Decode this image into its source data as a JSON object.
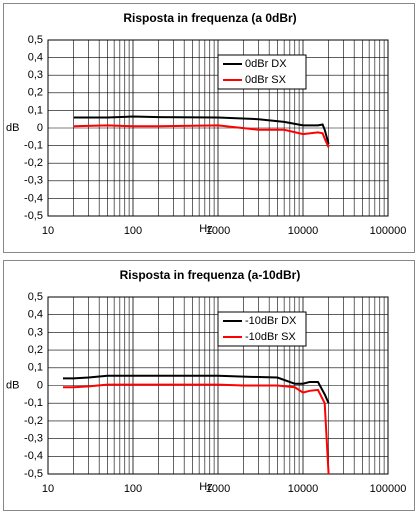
{
  "chart_data": [
    {
      "type": "line",
      "title": "Risposta in frequenza (a 0dBr)",
      "xlabel": "Hz",
      "ylabel": "dB",
      "xscale": "log",
      "grid": true,
      "legend": "upper right",
      "x": [
        20,
        50,
        100,
        200,
        1000,
        3000,
        6000,
        10000,
        15000,
        17000,
        18000,
        20000
      ],
      "series": [
        {
          "name": "0dBr DX",
          "color": "#000000",
          "values": [
            0.06,
            0.06,
            0.065,
            0.062,
            0.06,
            0.05,
            0.035,
            0.015,
            0.015,
            0.02,
            -0.01,
            -0.09
          ]
        },
        {
          "name": "0dBr SX",
          "color": "#ff0000",
          "values": [
            0.01,
            0.015,
            0.01,
            0.01,
            0.015,
            -0.01,
            -0.01,
            -0.035,
            -0.025,
            -0.03,
            -0.06,
            -0.11
          ]
        }
      ],
      "xlim": [
        10,
        100000
      ],
      "xticks": [
        10,
        100,
        1000,
        10000,
        100000
      ],
      "ylim": [
        -0.5,
        0.5
      ],
      "yticks": [
        {
          "value": 0.5,
          "label": "0,5"
        },
        {
          "value": 0.4,
          "label": "0,4"
        },
        {
          "value": 0.3,
          "label": "0,3"
        },
        {
          "value": 0.2,
          "label": "0,2"
        },
        {
          "value": 0.1,
          "label": "0,1"
        },
        0,
        {
          "value": -0.1,
          "label": "-0,1"
        },
        {
          "value": -0.2,
          "label": "-0,2"
        },
        {
          "value": -0.3,
          "label": "-0,3"
        },
        {
          "value": -0.4,
          "label": "-0,4"
        },
        {
          "value": -0.5,
          "label": "-0,5"
        }
      ]
    },
    {
      "type": "line",
      "title": "Risposta in frequenza (a-10dBr)",
      "xlabel": "Hz",
      "ylabel": "dB",
      "xscale": "log",
      "grid": true,
      "legend": "upper right",
      "x": [
        15,
        20,
        30,
        50,
        100,
        1000,
        2000,
        5000,
        8000,
        10000,
        12000,
        15000,
        18000,
        20000
      ],
      "series": [
        {
          "name": "-10dBr DX",
          "color": "#000000",
          "values": [
            0.04,
            0.04,
            0.045,
            0.055,
            0.055,
            0.055,
            0.05,
            0.045,
            0.01,
            0.01,
            0.02,
            0.02,
            -0.05,
            -0.1
          ]
        },
        {
          "name": "-10dBr SX",
          "color": "#ff0000",
          "values": [
            -0.01,
            -0.01,
            -0.005,
            0.005,
            0.005,
            0.005,
            0,
            0,
            -0.01,
            -0.04,
            -0.03,
            -0.025,
            -0.1,
            -0.5
          ]
        }
      ],
      "xlim": [
        10,
        100000
      ],
      "xticks": [
        10,
        100,
        1000,
        10000,
        100000
      ],
      "ylim": [
        -0.5,
        0.5
      ],
      "yticks": [
        {
          "value": 0.5,
          "label": "0,5"
        },
        {
          "value": 0.4,
          "label": "0,4"
        },
        {
          "value": 0.3,
          "label": "0,3"
        },
        {
          "value": 0.2,
          "label": "0,2"
        },
        {
          "value": 0.1,
          "label": "0,1"
        },
        0,
        {
          "value": -0.1,
          "label": "-0,1"
        },
        {
          "value": -0.2,
          "label": "-0,2"
        },
        {
          "value": -0.3,
          "label": "-0,3"
        },
        {
          "value": -0.4,
          "label": "-0,4"
        },
        {
          "value": -0.5,
          "label": "-0,5"
        }
      ]
    }
  ]
}
